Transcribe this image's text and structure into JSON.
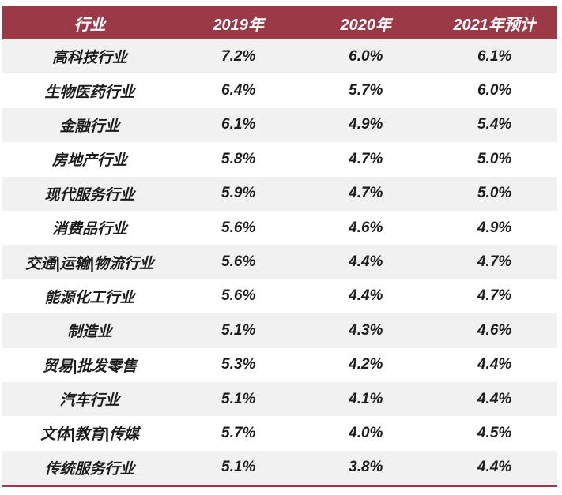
{
  "colors": {
    "header_bg": "#9B3A46",
    "header_text": "#FFFFFF",
    "row_bg": "#FFFFFF",
    "row_alt_bg": "#F1F1F2",
    "body_text": "#1C1C1C",
    "bottom_line": "#9B3A46"
  },
  "table": {
    "columns": [
      "行业",
      "2019年",
      "2020年",
      "2021年预计"
    ],
    "rows": [
      [
        "高科技行业",
        "7.2%",
        "6.0%",
        "6.1%"
      ],
      [
        "生物医药行业",
        "6.4%",
        "5.7%",
        "6.0%"
      ],
      [
        "金融行业",
        "6.1%",
        "4.9%",
        "5.4%"
      ],
      [
        "房地产行业",
        "5.8%",
        "4.7%",
        "5.0%"
      ],
      [
        "现代服务行业",
        "5.9%",
        "4.7%",
        "5.0%"
      ],
      [
        "消费品行业",
        "5.6%",
        "4.6%",
        "4.9%"
      ],
      [
        "交通|运输|物流行业",
        "5.6%",
        "4.4%",
        "4.7%"
      ],
      [
        "能源化工行业",
        "5.6%",
        "4.4%",
        "4.7%"
      ],
      [
        "制造业",
        "5.1%",
        "4.3%",
        "4.6%"
      ],
      [
        "贸易|批发零售",
        "5.3%",
        "4.2%",
        "4.4%"
      ],
      [
        "汽车行业",
        "5.1%",
        "4.1%",
        "4.4%"
      ],
      [
        "文体|教育|传媒",
        "5.7%",
        "4.0%",
        "4.5%"
      ],
      [
        "传统服务行业",
        "5.1%",
        "3.8%",
        "4.4%"
      ]
    ]
  },
  "chart_data": {
    "type": "table",
    "title": "",
    "columns": [
      "行业",
      "2019年",
      "2020年",
      "2021年预计"
    ],
    "categories": [
      "高科技行业",
      "生物医药行业",
      "金融行业",
      "房地产行业",
      "现代服务行业",
      "消费品行业",
      "交通|运输|物流行业",
      "能源化工行业",
      "制造业",
      "贸易|批发零售",
      "汽车行业",
      "文体|教育|传媒",
      "传统服务行业"
    ],
    "series": [
      {
        "name": "2019年",
        "values": [
          7.2,
          6.4,
          6.1,
          5.8,
          5.9,
          5.6,
          5.6,
          5.6,
          5.1,
          5.3,
          5.1,
          5.7,
          5.1
        ]
      },
      {
        "name": "2020年",
        "values": [
          6.0,
          5.7,
          4.9,
          4.7,
          4.7,
          4.6,
          4.4,
          4.4,
          4.3,
          4.2,
          4.1,
          4.0,
          3.8
        ]
      },
      {
        "name": "2021年预计",
        "values": [
          6.1,
          6.0,
          5.4,
          5.0,
          5.0,
          4.9,
          4.7,
          4.7,
          4.6,
          4.4,
          4.4,
          4.5,
          4.4
        ]
      }
    ],
    "unit": "%"
  }
}
